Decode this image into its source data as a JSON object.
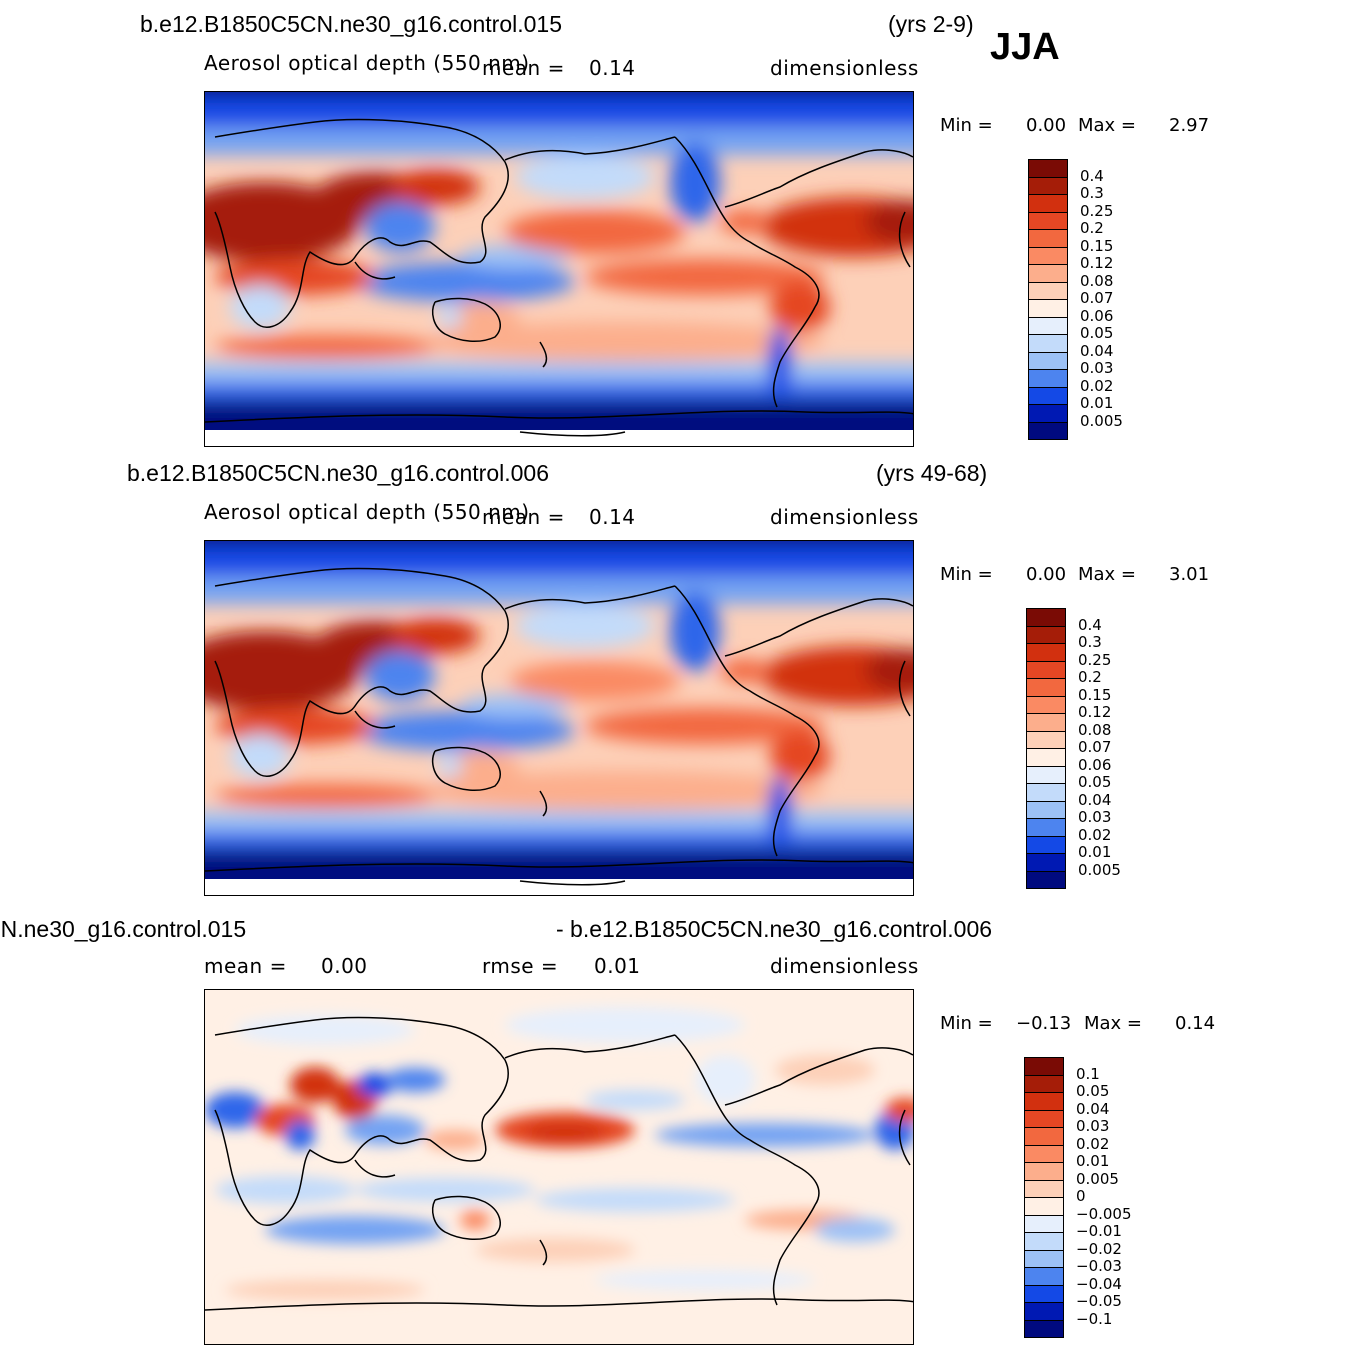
{
  "season": "JJA",
  "palette": {
    "seq": [
      "#000a7f",
      "#0019b3",
      "#0533d1",
      "#1449e6",
      "#2e66ea",
      "#4d84ef",
      "#73a3f3",
      "#9cc1f6",
      "#c3dbfa",
      "#e6effc",
      "#fff0e5",
      "#fdd0b8",
      "#fcae8c",
      "#fa8a63",
      "#f2683f",
      "#e54724",
      "#d2300f",
      "#a51d08",
      "#7a0b05"
    ],
    "div": [
      "#000a7f",
      "#0019b3",
      "#0533d1",
      "#1449e6",
      "#2e66ea",
      "#4d84ef",
      "#73a3f3",
      "#9cc1f6",
      "#c3dbfa",
      "#e6effc",
      "#fff0e5",
      "#fdd0b8",
      "#fcae8c",
      "#fa8a63",
      "#f2683f",
      "#e54724",
      "#d2300f",
      "#a51d08",
      "#7a0b05"
    ]
  },
  "chart_data": [
    {
      "type": "heatmap",
      "panel": "top",
      "case": "b.e12.B1850C5CN.ne30_g16.control.015",
      "years": "(yrs 2-9)",
      "variable": "Aerosol  optical  depth  (550  nm)",
      "mean_label": "mean =",
      "mean_value": "0.14",
      "units": "dimensionless",
      "min_label": "Min  =",
      "min_value": "0.00",
      "max_label": "Max  =",
      "max_value": "2.97",
      "levels": [
        "0.4",
        "0.3",
        "0.25",
        "0.2",
        "0.15",
        "0.12",
        "0.08",
        "0.07",
        "0.06",
        "0.05",
        "0.04",
        "0.03",
        "0.02",
        "0.01",
        "0.005"
      ]
    },
    {
      "type": "heatmap",
      "panel": "middle",
      "case": "b.e12.B1850C5CN.ne30_g16.control.006",
      "years": "(yrs 49-68)",
      "variable": "Aerosol  optical  depth  (550  nm)",
      "mean_label": "mean =",
      "mean_value": "0.14",
      "units": "dimensionless",
      "min_label": "Min  =",
      "min_value": "0.00",
      "max_label": "Max  =",
      "max_value": "3.01",
      "levels": [
        "0.4",
        "0.3",
        "0.25",
        "0.2",
        "0.15",
        "0.12",
        "0.08",
        "0.07",
        "0.06",
        "0.05",
        "0.04",
        "0.03",
        "0.02",
        "0.01",
        "0.005"
      ]
    },
    {
      "type": "heatmap",
      "panel": "bottom",
      "case_left": " N.ne30_g16.control.015",
      "case_right": "- b.e12.B1850C5CN.ne30_g16.control.006",
      "mean_label": "mean  =",
      "mean_value": "0.00",
      "rmse_label": "rmse  =",
      "rmse_value": "0.01",
      "units": "dimensionless",
      "min_label": "Min  =",
      "min_value": "−0.13",
      "max_label": "Max  =",
      "max_value": "0.14",
      "levels": [
        "0.1",
        "0.05",
        "0.04",
        "0.03",
        "0.02",
        "0.01",
        "0.005",
        "0",
        "−0.005",
        "−0.01",
        "−0.02",
        "−0.03",
        "−0.04",
        "−0.05",
        "−0.1"
      ]
    }
  ]
}
